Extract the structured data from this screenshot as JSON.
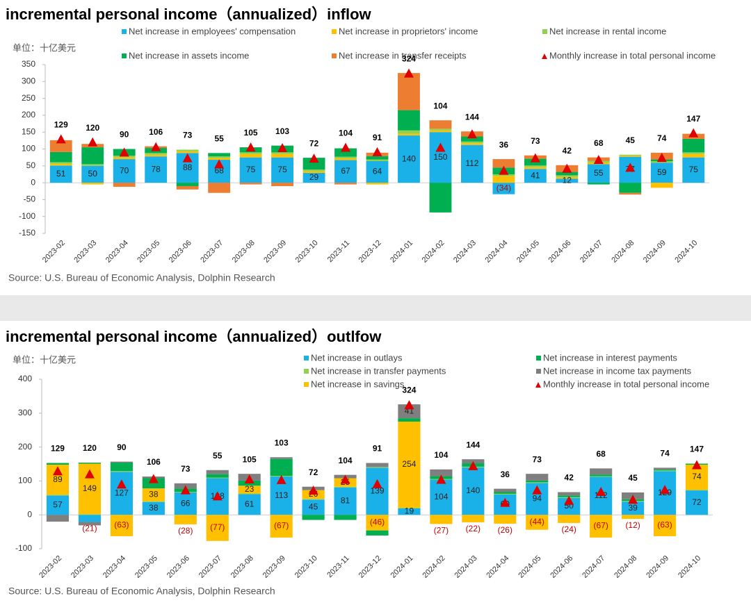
{
  "chart_data": [
    {
      "type": "bar",
      "stacked": true,
      "title": "incremental personal income（annualized）inflow",
      "unit_label": "单位：十亿美元",
      "source": "Source: U.S. Bureau of Economic Analysis, Dolphin Research",
      "categories": [
        "2023-02",
        "2023-03",
        "2023-04",
        "2023-05",
        "2023-06",
        "2023-07",
        "2023-08",
        "2023-09",
        "2023-10",
        "2023-11",
        "2023-12",
        "2024-01",
        "2024-02",
        "2024-03",
        "2024-04",
        "2024-05",
        "2024-06",
        "2024-07",
        "2024-08",
        "2024-09",
        "2024-10"
      ],
      "ylim": [
        -150,
        350
      ],
      "yticks": [
        -150,
        -100,
        -50,
        0,
        50,
        100,
        150,
        200,
        250,
        300,
        350
      ],
      "series": [
        {
          "name": "Net increase in employees' compensation",
          "color": "#1ab0e8",
          "values": [
            51,
            50,
            70,
            78,
            88,
            68,
            75,
            75,
            29,
            67,
            64,
            140,
            150,
            112,
            -34,
            41,
            12,
            55,
            77,
            59,
            75
          ],
          "value_labels": [
            "51",
            "50",
            "70",
            "78",
            "88",
            "68",
            "75",
            "75",
            "29",
            "67",
            "64",
            "140",
            "150",
            "112",
            "(34)",
            "41",
            "12",
            "55",
            "77",
            "59",
            "75"
          ]
        },
        {
          "name": "Net increase in proprietors' income",
          "color": "#ffc000",
          "values": [
            5,
            -5,
            5,
            5,
            5,
            5,
            10,
            10,
            5,
            5,
            -5,
            5,
            5,
            5,
            20,
            5,
            5,
            5,
            3,
            -15,
            10
          ]
        },
        {
          "name": "Net increase in rental income",
          "color": "#92d050",
          "values": [
            5,
            5,
            5,
            5,
            5,
            5,
            5,
            5,
            5,
            5,
            5,
            10,
            5,
            5,
            5,
            5,
            5,
            5,
            3,
            5,
            5
          ]
        },
        {
          "name": "Net increase in assets income",
          "color": "#00b050",
          "values": [
            30,
            50,
            20,
            15,
            -10,
            10,
            15,
            20,
            35,
            25,
            10,
            60,
            -88,
            15,
            20,
            20,
            10,
            -5,
            -30,
            5,
            40
          ]
        },
        {
          "name": "Net increase in transfer receipts",
          "color": "#ed7d31",
          "values": [
            35,
            10,
            -12,
            5,
            -10,
            -30,
            -5,
            -10,
            0,
            -5,
            10,
            110,
            25,
            15,
            25,
            10,
            20,
            10,
            -5,
            20,
            15
          ]
        }
      ],
      "totals": {
        "name": "Monthly increase in total personal income",
        "color": "#e00000",
        "values": [
          129,
          120,
          90,
          106,
          73,
          55,
          105,
          103,
          72,
          104,
          91,
          324,
          104,
          144,
          36,
          73,
          42,
          68,
          45,
          74,
          147
        ]
      }
    },
    {
      "type": "bar",
      "stacked": true,
      "title": "incremental personal income（annualized）outlfow",
      "unit_label": "单位：十亿美元",
      "source": "Source: U.S. Bureau of Economic Analysis, Dolphin Research",
      "categories": [
        "2023-02",
        "2023-03",
        "2023-04",
        "2023-05",
        "2023-06",
        "2023-07",
        "2023-08",
        "2023-09",
        "2023-10",
        "2023-11",
        "2023-12",
        "2024-01",
        "2024-02",
        "2024-03",
        "2024-04",
        "2024-05",
        "2024-06",
        "2024-07",
        "2024-08",
        "2024-09",
        "2024-10"
      ],
      "ylim": [
        -100,
        400
      ],
      "yticks": [
        -100,
        0,
        100,
        200,
        300,
        400
      ],
      "series": [
        {
          "name": "Net increase in outlays",
          "color": "#1ab0e8",
          "values": [
            57,
            -21,
            127,
            38,
            66,
            108,
            61,
            113,
            45,
            81,
            139,
            19,
            104,
            140,
            60,
            94,
            50,
            112,
            39,
            129,
            72
          ],
          "value_labels": [
            "57",
            "(21)",
            "127",
            "38",
            "66",
            "108",
            "61",
            "113",
            "45",
            "81",
            "139",
            "19",
            "104",
            "140",
            "60",
            "94",
            "50",
            "112",
            "39",
            "129",
            "72"
          ]
        },
        {
          "name": "Net increase in transfer payments",
          "color": "#92d050",
          "values": [
            2,
            2,
            2,
            2,
            2,
            2,
            2,
            2,
            2,
            2,
            2,
            2,
            2,
            2,
            2,
            2,
            2,
            2,
            2,
            2,
            2
          ]
        },
        {
          "name": "Net increase in savings",
          "color": "#ffc000",
          "values": [
            89,
            149,
            -63,
            38,
            -28,
            -77,
            23,
            -67,
            26,
            25,
            -46,
            254,
            -27,
            -22,
            -26,
            -44,
            -24,
            -67,
            -12,
            -63,
            74
          ],
          "value_labels": [
            "89",
            "149",
            "(63)",
            "38",
            "(28)",
            "(77)",
            "23",
            "(67)",
            "26",
            "25",
            "(46)",
            "254",
            "(27)",
            "(22)",
            "(26)",
            "(44)",
            "(24)",
            "(67)",
            "(12)",
            "(63)",
            "74"
          ]
        },
        {
          "name": "Net increase in interest payments",
          "color": "#00b050",
          "values": [
            5,
            3,
            25,
            30,
            10,
            10,
            15,
            50,
            -15,
            -15,
            -15,
            10,
            8,
            10,
            5,
            5,
            5,
            5,
            5,
            3,
            3
          ]
        },
        {
          "name": "Net increase in income tax payments",
          "color": "#7f7f7f",
          "values": [
            -20,
            -10,
            3,
            5,
            15,
            12,
            20,
            5,
            10,
            10,
            12,
            41,
            20,
            12,
            10,
            20,
            10,
            18,
            20,
            5,
            0
          ],
          "value_labels": [
            null,
            null,
            null,
            null,
            null,
            null,
            null,
            null,
            null,
            null,
            null,
            "41",
            null,
            null,
            null,
            null,
            null,
            null,
            null,
            null,
            null
          ]
        }
      ],
      "totals": {
        "name": "Monthly increase in total personal income",
        "color": "#e00000",
        "values": [
          129,
          120,
          90,
          106,
          73,
          55,
          105,
          103,
          72,
          104,
          91,
          324,
          104,
          144,
          36,
          73,
          42,
          68,
          45,
          74,
          147
        ]
      }
    }
  ]
}
